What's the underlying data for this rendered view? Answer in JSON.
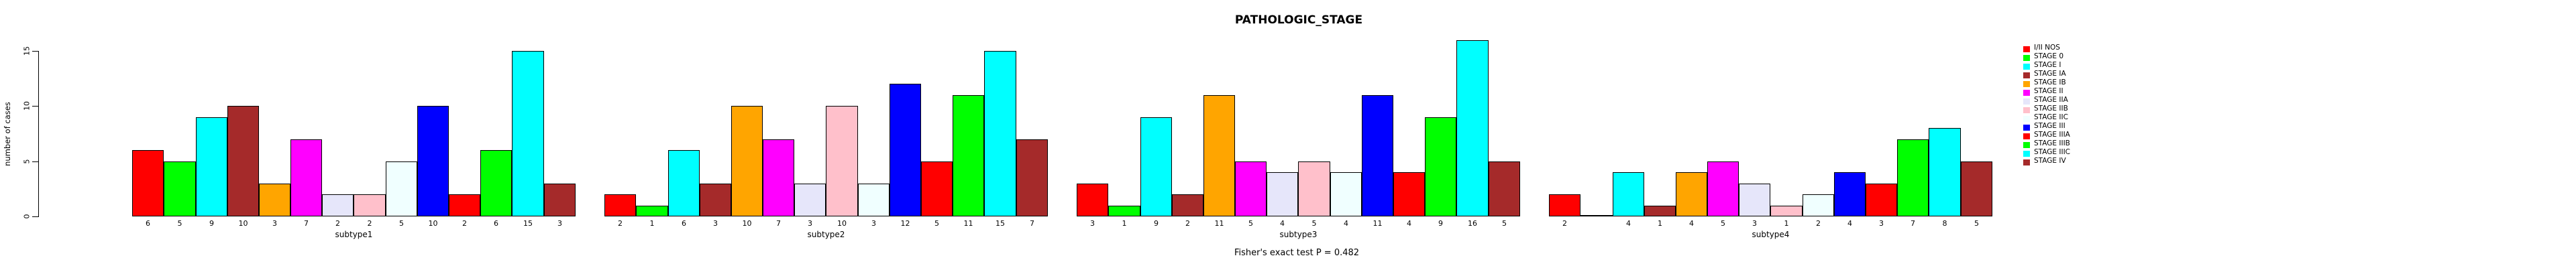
{
  "chart_data": {
    "type": "bar",
    "title": "PATHOLOGIC_STAGE",
    "ylabel": "number of cases",
    "footer": "Fisher's exact test P = 0.482",
    "yticks": [
      0,
      5,
      10,
      15
    ],
    "ylim": [
      0,
      15
    ],
    "grid": false,
    "legend_position": "right",
    "categories": [
      "subtype1",
      "subtype2",
      "subtype3",
      "subtype4"
    ],
    "stages": [
      {
        "label": "I/II NOS",
        "color": "#FF0000"
      },
      {
        "label": "STAGE 0",
        "color": "#00FF00"
      },
      {
        "label": "STAGE I",
        "color": "#00FFFF"
      },
      {
        "label": "STAGE IA",
        "color": "#A52A2A"
      },
      {
        "label": "STAGE IB",
        "color": "#FFA500"
      },
      {
        "label": "STAGE II",
        "color": "#FF00FF"
      },
      {
        "label": "STAGE IIA",
        "color": "#E6E6FA"
      },
      {
        "label": "STAGE IIB",
        "color": "#FFC0CB"
      },
      {
        "label": "STAGE IIC",
        "color": "#F0FFFF"
      },
      {
        "label": "STAGE III",
        "color": "#0000FF"
      },
      {
        "label": "STAGE IIIA",
        "color": "#FF0000"
      },
      {
        "label": "STAGE IIIB",
        "color": "#00FF00"
      },
      {
        "label": "STAGE IIIC",
        "color": "#00FFFF"
      },
      {
        "label": "STAGE IV",
        "color": "#A52A2A"
      }
    ],
    "series": [
      {
        "name": "subtype1",
        "values": [
          6,
          5,
          9,
          10,
          3,
          7,
          2,
          2,
          5,
          10,
          2,
          6,
          15,
          3
        ]
      },
      {
        "name": "subtype2",
        "values": [
          2,
          1,
          6,
          3,
          10,
          7,
          3,
          10,
          3,
          12,
          5,
          11,
          15,
          7
        ]
      },
      {
        "name": "subtype3",
        "values": [
          3,
          1,
          9,
          2,
          11,
          5,
          4,
          5,
          4,
          11,
          4,
          9,
          16,
          5
        ]
      },
      {
        "name": "subtype4",
        "values": [
          2,
          0,
          4,
          1,
          4,
          5,
          3,
          1,
          2,
          4,
          3,
          7,
          8,
          5
        ]
      }
    ],
    "axis_color": "#000000",
    "bar_border_color": "#000000",
    "background_color": "#FFFFFF"
  }
}
